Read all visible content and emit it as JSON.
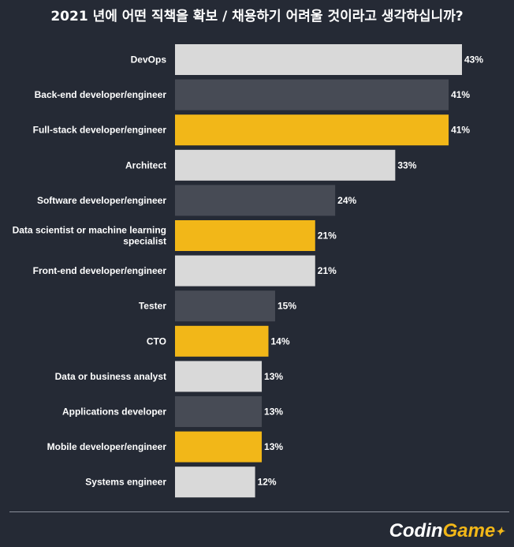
{
  "chart_data": {
    "type": "bar",
    "orientation": "horizontal",
    "title": "2021 년에 어떤 직책을 확보 / 채용하기 어려울 것이라고 생각하십니까?",
    "categories": [
      "DevOps",
      "Back-end developer/engineer",
      "Full-stack developer/engineer",
      "Architect",
      "Software developer/engineer",
      "Data scientist or machine learning specialist",
      "Front-end developer/engineer",
      "Tester",
      "CTO",
      "Data or business analyst",
      "Applications developer",
      "Mobile developer/engineer",
      "Systems engineer"
    ],
    "category_lines": [
      [
        "DevOps"
      ],
      [
        "Back-end developer/engineer"
      ],
      [
        "Full-stack developer/engineer"
      ],
      [
        "Architect"
      ],
      [
        "Software developer/engineer"
      ],
      [
        "Data scientist or machine learning",
        "specialist"
      ],
      [
        "Front-end developer/engineer"
      ],
      [
        "Tester"
      ],
      [
        "CTO"
      ],
      [
        "Data or business analyst"
      ],
      [
        "Applications developer"
      ],
      [
        "Mobile developer/engineer"
      ],
      [
        "Systems engineer"
      ]
    ],
    "values": [
      43,
      41,
      41,
      33,
      24,
      21,
      21,
      15,
      14,
      13,
      13,
      13,
      12
    ],
    "value_labels": [
      "43%",
      "41%",
      "41%",
      "33%",
      "24%",
      "21%",
      "21%",
      "15%",
      "14%",
      "13%",
      "13%",
      "13%",
      "12%"
    ],
    "unit": "%",
    "xlim": [
      0,
      43
    ],
    "grid": false,
    "legend": "none",
    "colors": {
      "light": "#d9d9d9",
      "dark": "#474b55",
      "yellow": "#f2b718",
      "background": "#252a35"
    },
    "bar_color_keys": [
      "light",
      "dark",
      "yellow",
      "light",
      "dark",
      "yellow",
      "light",
      "dark",
      "yellow",
      "light",
      "dark",
      "yellow",
      "light"
    ]
  },
  "branding": {
    "logo_part1": "Cod",
    "logo_part2": "n",
    "logo_i": "i",
    "logo_part3": "Game"
  }
}
